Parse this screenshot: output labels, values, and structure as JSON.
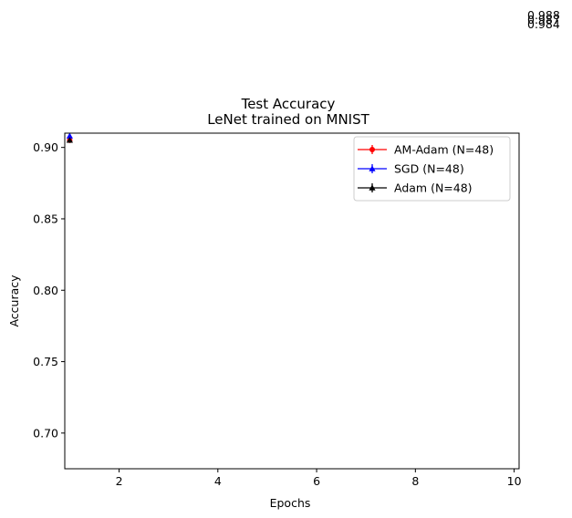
{
  "chart_data": {
    "type": "line",
    "title": "Test Accuracy",
    "subtitle": "LeNet trained on MNIST",
    "xlabel": "Epochs",
    "ylabel": "Accuracy",
    "xlim": [
      0.9,
      10.1
    ],
    "ylim": [
      0.675,
      0.91
    ],
    "x_ticks": [
      2,
      4,
      6,
      8,
      10
    ],
    "y_ticks": [
      0.7,
      0.75,
      0.8,
      0.85,
      0.9
    ],
    "x_tick_labels": [
      "2",
      "4",
      "6",
      "8",
      "10"
    ],
    "y_tick_labels": [
      "0.70",
      "0.75",
      "0.80",
      "0.85",
      "0.90"
    ],
    "grid": false,
    "legend_position": "top-right",
    "series": [
      {
        "name": "AM-Adam (N=48)",
        "color": "#ff0000",
        "marker": "circle",
        "x": [
          1
        ],
        "y": [
          0.905
        ]
      },
      {
        "name": "SGD (N=48)",
        "color": "#0000ff",
        "marker": "triangle",
        "x": [
          1
        ],
        "y": [
          0.908
        ]
      },
      {
        "name": "Adam (N=48)",
        "color": "#000000",
        "marker": "triangle",
        "x": [
          1
        ],
        "y": [
          0.905
        ]
      }
    ],
    "annotations": [
      "0.988",
      "0.987",
      "0.984"
    ]
  }
}
